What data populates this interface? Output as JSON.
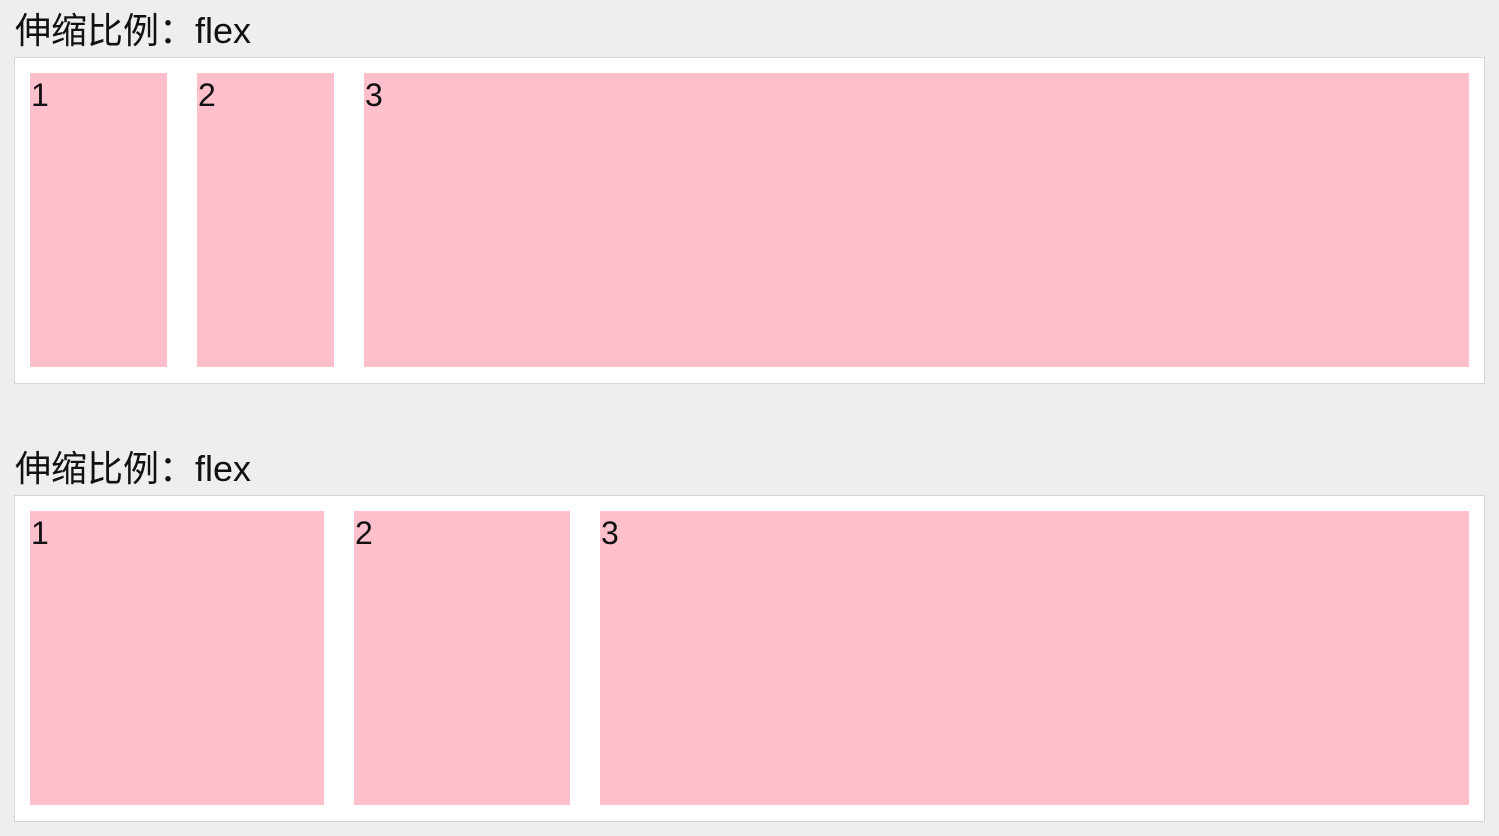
{
  "sections": [
    {
      "heading": "伸缩比例：flex",
      "items": [
        "1",
        "2",
        "3"
      ]
    },
    {
      "heading": "伸缩比例：flex",
      "items": [
        "1",
        "2",
        "3"
      ]
    }
  ],
  "colors": {
    "page_background": "#eeeeee",
    "container_background": "#ffffff",
    "item_background": "#ffc0cb"
  }
}
